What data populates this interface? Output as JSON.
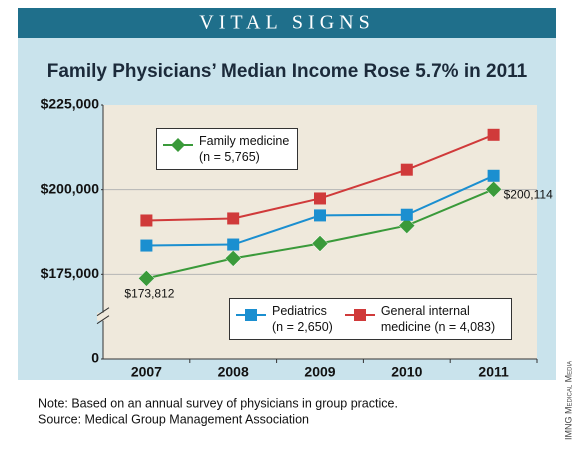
{
  "header": "VITAL SIGNS",
  "chart_data": {
    "type": "line",
    "title": "Family Physicians’ Median Income Rose 5.7% in 2011",
    "categories": [
      "2007",
      "2008",
      "2009",
      "2010",
      "2011"
    ],
    "series": [
      {
        "name": "Family medicine",
        "sample": "(n = 5,765)",
        "color": "#3a9a3a",
        "marker": "diamond",
        "values": [
          173812,
          179700,
          184100,
          189400,
          200114
        ],
        "value_labels": [
          "$173,812",
          null,
          null,
          null,
          "$200,114"
        ]
      },
      {
        "name": "Pediatrics",
        "sample": "(n = 2,650)",
        "color": "#1b8fd0",
        "marker": "square",
        "values": [
          183500,
          183800,
          192400,
          192600,
          204100
        ]
      },
      {
        "name": "General internal medicine",
        "sample": "(n = 4,083)",
        "color": "#d03a3a",
        "marker": "square",
        "values": [
          190900,
          191500,
          197400,
          205900,
          216200
        ]
      }
    ],
    "ylim": [
      0,
      225000
    ],
    "y_axis_break": true,
    "yticks": [
      0,
      {
        "value": 175000,
        "label": "$175,000"
      },
      {
        "value": 200000,
        "label": "$200,000"
      },
      {
        "value": 225000,
        "label": "$225,000"
      }
    ],
    "grid": true
  },
  "note": "Note: Based on an annual survey of physicians in group practice.",
  "source": "Source: Medical Group Management Association",
  "credit": "IMNG Medical Media"
}
